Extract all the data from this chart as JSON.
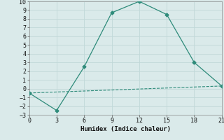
{
  "line1_x": [
    0,
    3,
    6,
    9,
    12,
    15,
    18,
    21
  ],
  "line1_y": [
    -0.5,
    -2.5,
    2.5,
    8.7,
    10,
    8.5,
    3.0,
    0.3
  ],
  "line2_x": [
    0,
    21
  ],
  "line2_y": [
    -0.5,
    0.3
  ],
  "line_color": "#2e8b7a",
  "xlabel": "Humidex (Indice chaleur)",
  "xlim": [
    0,
    21
  ],
  "ylim": [
    -3,
    10
  ],
  "xticks": [
    0,
    3,
    6,
    9,
    12,
    15,
    18,
    21
  ],
  "yticks": [
    -3,
    -2,
    -1,
    0,
    1,
    2,
    3,
    4,
    5,
    6,
    7,
    8,
    9,
    10
  ],
  "bg_color": "#daeaea",
  "grid_color": "#c0d8d8",
  "font_family": "monospace"
}
